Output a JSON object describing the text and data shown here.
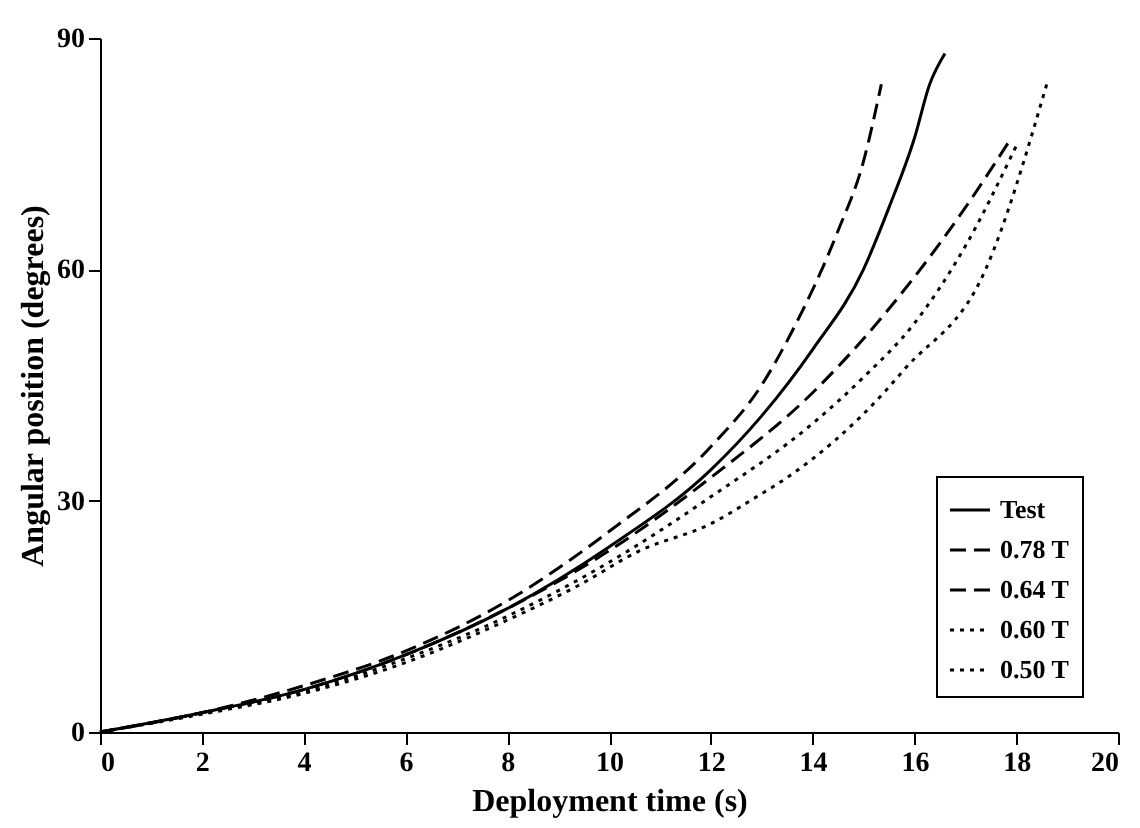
{
  "chart_data": {
    "type": "line",
    "xlabel": "Deployment time (s)",
    "ylabel": "Angular position (degrees)",
    "xlim": [
      0,
      20
    ],
    "xticks": [
      0,
      2,
      4,
      6,
      8,
      10,
      12,
      14,
      16,
      18,
      20
    ],
    "ylim": [
      0,
      90
    ],
    "yticks": [
      0,
      30,
      60,
      90
    ],
    "grid": false,
    "legend": "bottom right",
    "marker": "none",
    "series": [
      {
        "name": "Test",
        "color": "#000000",
        "line_style": "solid",
        "x": [
          0,
          2,
          4,
          6,
          8,
          10,
          12,
          13,
          14,
          15,
          15.5,
          16,
          16.3,
          16.6
        ],
        "values": [
          0,
          2.5,
          5.5,
          10,
          16,
          24,
          34,
          41,
          49.6,
          60,
          68,
          77,
          84,
          88
        ]
      },
      {
        "name": "0.78 T",
        "color": "#000000",
        "line_style": "dashed",
        "x": [
          0,
          2,
          4,
          6,
          8,
          10,
          12,
          13,
          13.6,
          14.5,
          15,
          15.35
        ],
        "values": [
          0,
          2.5,
          6,
          10.5,
          17,
          26,
          37,
          45,
          52,
          65,
          74,
          84
        ]
      },
      {
        "name": "0.64 T",
        "color": "#000000",
        "line_style": "dashed",
        "x": [
          0,
          2,
          4,
          6,
          8,
          10,
          12,
          14,
          15,
          16,
          17,
          17.9
        ],
        "values": [
          0,
          2.5,
          5.5,
          10,
          16,
          23.5,
          33,
          44,
          51,
          59,
          68,
          77
        ]
      },
      {
        "name": "0.60 T",
        "color": "#000000",
        "line_style": "dotted",
        "x": [
          0,
          2,
          4,
          6,
          8,
          10,
          12,
          14,
          15,
          16,
          17,
          18
        ],
        "values": [
          0,
          2.4,
          5.2,
          9.5,
          15,
          22,
          30.5,
          40,
          46,
          53,
          63,
          76
        ]
      },
      {
        "name": "0.50 T",
        "color": "#000000",
        "line_style": "dotted",
        "x": [
          0,
          2,
          4,
          6,
          8,
          9.4,
          10.6,
          12,
          12.9,
          13.5,
          15.4,
          15.8,
          17.4,
          18.6
        ],
        "values": [
          0,
          2.3,
          5,
          9,
          14.5,
          19,
          23.5,
          27,
          30.5,
          33,
          44,
          47,
          60,
          84
        ]
      }
    ]
  }
}
